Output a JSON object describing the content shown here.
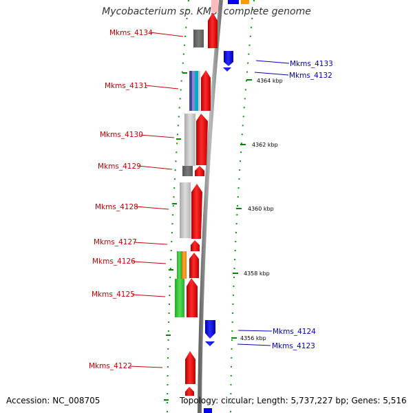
{
  "title": "Mycobacterium sp. KMS, complete genome",
  "footer": {
    "accession": "Accession: NC_008705",
    "topology": "Topology: circular; Length: 5,737,227 bp; Genes: 5,516"
  },
  "ticks": [
    {
      "label": "4364 kbp"
    },
    {
      "label": "4362 kbp"
    },
    {
      "label": "4360 kbp"
    },
    {
      "label": "4358 kbp"
    },
    {
      "label": "4356 kbp"
    }
  ],
  "genes_left": [
    {
      "label": "Mkms_4134"
    },
    {
      "label": "Mkms_4131"
    },
    {
      "label": "Mkms_4130"
    },
    {
      "label": "Mkms_4129"
    },
    {
      "label": "Mkms_4128"
    },
    {
      "label": "Mkms_4127"
    },
    {
      "label": "Mkms_4126"
    },
    {
      "label": "Mkms_4125"
    },
    {
      "label": "Mkms_4122"
    }
  ],
  "genes_right": [
    {
      "label": "Mkms_4133"
    },
    {
      "label": "Mkms_4132"
    },
    {
      "label": "Mkms_4124"
    },
    {
      "label": "Mkms_4123"
    }
  ],
  "colors": {
    "forward_gene": "#ff0000",
    "reverse_gene": "#0000ee",
    "left_label": "#cc0000",
    "right_label": "#0000bb",
    "backbone": "#888888",
    "tick": "#008800"
  }
}
